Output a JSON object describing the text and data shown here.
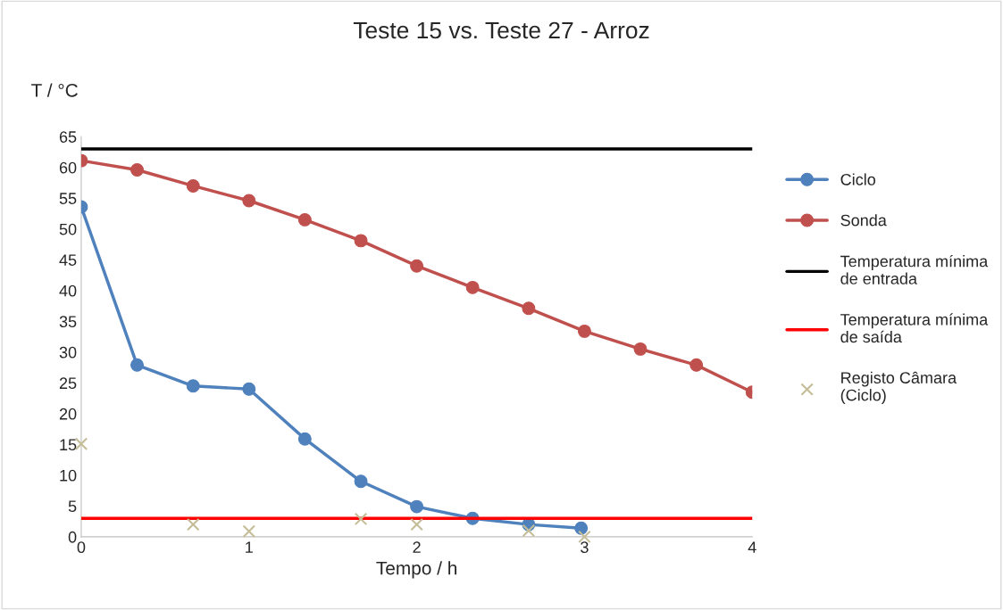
{
  "chart_data": {
    "type": "line",
    "title": "Teste 15 vs. Teste 27 - Arroz",
    "xlabel": "Tempo / h",
    "ylabel": "T / °C",
    "xlim": [
      0,
      4
    ],
    "xticks": [
      0,
      1,
      2,
      3,
      4
    ],
    "ylim": [
      0,
      65
    ],
    "yticks": [
      0,
      5,
      10,
      15,
      20,
      25,
      30,
      35,
      40,
      45,
      50,
      55,
      60,
      65
    ],
    "grid": false,
    "legend": "right",
    "series": [
      {
        "name": "Ciclo",
        "color": "#4f81bd",
        "marker": "circle",
        "x": [
          0,
          0.333,
          0.667,
          1,
          1.333,
          1.667,
          2,
          2.333,
          2.667,
          2.98
        ],
        "values": [
          53.6,
          27.9,
          24.5,
          24.0,
          15.9,
          9.0,
          4.9,
          3.0,
          2.0,
          1.4
        ]
      },
      {
        "name": "Sonda",
        "color": "#c0504d",
        "marker": "circle",
        "x": [
          0,
          0.333,
          0.667,
          1,
          1.333,
          1.667,
          2,
          2.333,
          2.667,
          3,
          3.333,
          3.667,
          4
        ],
        "values": [
          61.1,
          59.6,
          57.0,
          54.6,
          51.5,
          48.1,
          44.0,
          40.5,
          37.1,
          33.4,
          30.5,
          27.9,
          23.5
        ]
      },
      {
        "name": "Temperatura mínima\nde entrada",
        "color": "#000000",
        "marker": "none",
        "x": [
          0,
          4
        ],
        "values": [
          63,
          63
        ]
      },
      {
        "name": "Temperatura mínima\nde saída",
        "color": "#ff0000",
        "marker": "none",
        "x": [
          0,
          4
        ],
        "values": [
          3,
          3
        ]
      },
      {
        "name": "Registo Câmara\n(Ciclo)",
        "type": "scatter",
        "color": "#c4bd97",
        "marker": "cross",
        "x": [
          0,
          0.667,
          1,
          1.667,
          2,
          2.667,
          3
        ],
        "values": [
          15.1,
          2.0,
          0.9,
          2.9,
          2.0,
          1.0,
          0
        ]
      }
    ]
  }
}
